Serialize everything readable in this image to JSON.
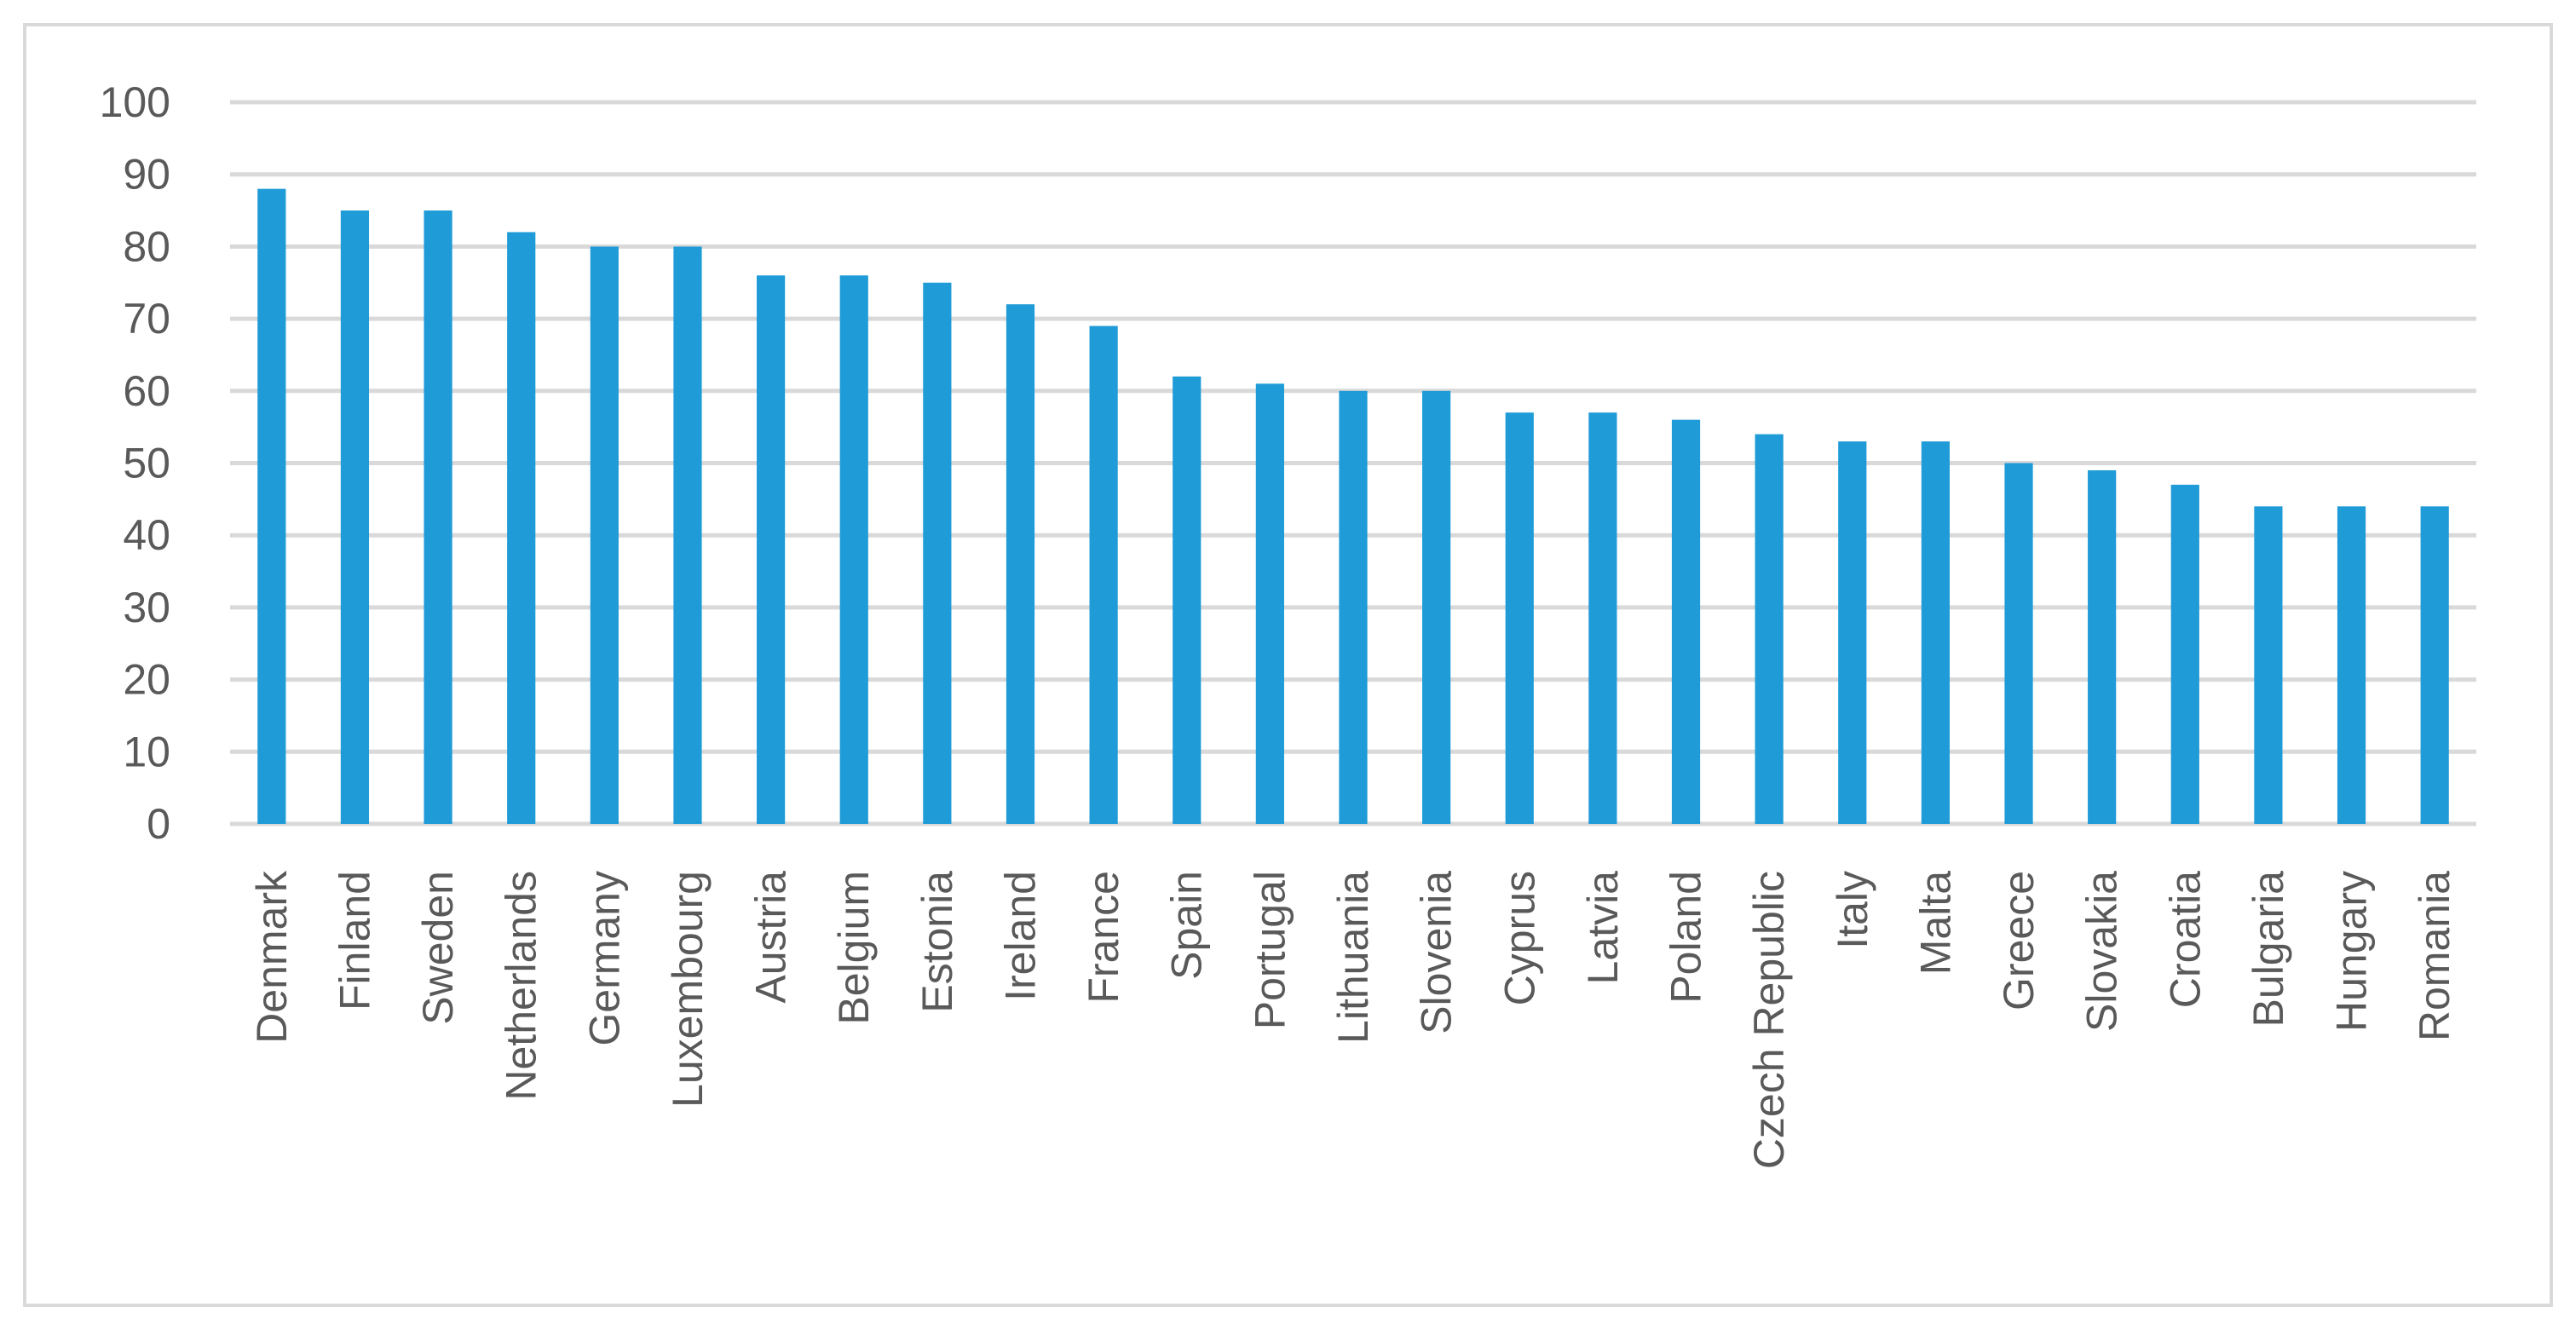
{
  "chart_data": {
    "type": "bar",
    "title": "",
    "xlabel": "",
    "ylabel": "",
    "categories": [
      "Denmark",
      "Finland",
      "Sweden",
      "Netherlands",
      "Germany",
      "Luxembourg",
      "Austria",
      "Belgium",
      "Estonia",
      "Ireland",
      "France",
      "Spain",
      "Portugal",
      "Lithuania",
      "Slovenia",
      "Cyprus",
      "Latvia",
      "Poland",
      "Czech Republic",
      "Italy",
      "Malta",
      "Greece",
      "Slovakia",
      "Croatia",
      "Bulgaria",
      "Hungary",
      "Romania"
    ],
    "values": [
      88,
      85,
      85,
      82,
      80,
      80,
      76,
      76,
      75,
      72,
      69,
      62,
      61,
      60,
      60,
      57,
      57,
      56,
      54,
      53,
      53,
      50,
      49,
      47,
      44,
      44,
      44
    ],
    "ylim": [
      0,
      100
    ],
    "yticks": [
      0,
      10,
      20,
      30,
      40,
      50,
      60,
      70,
      80,
      90,
      100
    ],
    "grid": true,
    "legend": "none",
    "colors": {
      "bar": "#1f9bd7",
      "grid": "#d9d9d9",
      "text": "#595959",
      "border": "#d9d9d9"
    }
  }
}
